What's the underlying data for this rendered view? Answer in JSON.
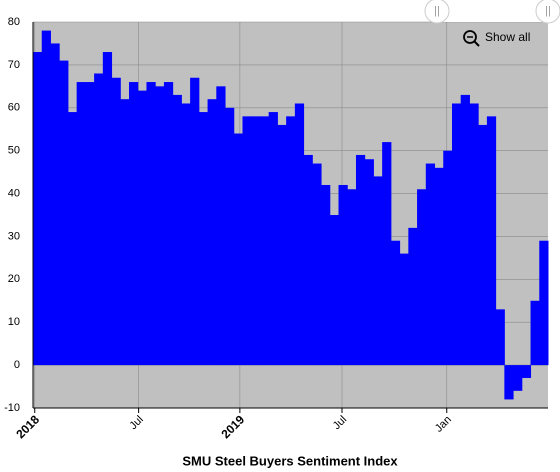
{
  "chart_data": {
    "type": "step-area",
    "title": "SMU Steel Buyers Sentiment Index",
    "button": "Show all",
    "color": "#0000ff",
    "background": "#c0c0c0",
    "grid": true,
    "values": [
      73,
      78,
      75,
      71,
      59,
      66,
      66,
      68,
      73,
      67,
      62,
      66,
      64,
      66,
      65,
      66,
      63,
      61,
      67,
      59,
      62,
      65,
      60,
      54,
      58,
      58,
      58,
      59,
      56,
      58,
      61,
      49,
      47,
      42,
      35,
      42,
      41,
      49,
      48,
      44,
      52,
      29,
      26,
      32,
      41,
      47,
      46,
      50,
      61,
      63,
      61,
      56,
      58,
      13,
      -8,
      -6,
      -3,
      15,
      29
    ],
    "xlim": [
      0,
      59
    ],
    "xticks": [
      {
        "value": 0.2,
        "label": "2018"
      },
      {
        "value": 12.1,
        "label": "Jul"
      },
      {
        "value": 23.7,
        "label": "2019"
      },
      {
        "value": 35.4,
        "label": "Jul"
      },
      {
        "value": 47.4,
        "label": "Jan"
      }
    ],
    "ylim": [
      -10,
      80
    ],
    "yticks": [
      -10,
      0,
      10,
      20,
      30,
      40,
      50,
      60,
      70,
      80
    ]
  }
}
